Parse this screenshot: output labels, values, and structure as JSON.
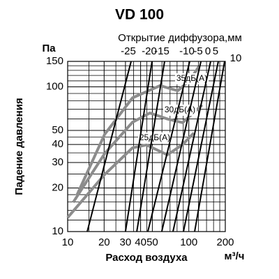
{
  "chart_data": {
    "type": "line",
    "title": "VD 100",
    "subtitle": "Открытие диффузора,мм",
    "x_label": "Расход воздуха",
    "x_unit": "м³/ч",
    "y_label": "Падение давления",
    "y_unit": "Па",
    "x_scale": "log",
    "y_scale": "log",
    "xlim": [
      10,
      200
    ],
    "ylim": [
      10,
      150
    ],
    "xticks": [
      10,
      20,
      30,
      40,
      50,
      100,
      200
    ],
    "yticks": [
      10,
      20,
      30,
      40,
      50,
      100,
      150
    ],
    "x_grid": [
      15,
      25,
      35,
      45,
      60,
      70,
      80,
      90,
      120,
      140,
      160,
      180
    ],
    "y_grid": [
      12,
      14,
      16,
      18,
      25,
      35,
      45,
      60,
      70,
      80,
      90,
      110,
      120,
      130,
      140
    ],
    "series": [
      {
        "name": "-25",
        "color": "#000000",
        "x": [
          14.5,
          33.4
        ],
        "values": [
          10,
          150
        ]
      },
      {
        "name": "-20",
        "color": "#000000",
        "x": [
          30.0,
          49.7
        ],
        "values": [
          10,
          150
        ]
      },
      {
        "name": "-15",
        "color": "#000000",
        "x": [
          37.2,
          63.1
        ],
        "values": [
          10,
          150
        ]
      },
      {
        "name": "-10",
        "color": "#000000",
        "x": [
          45.9,
          101.7
        ],
        "values": [
          10,
          150
        ]
      },
      {
        "name": "-5",
        "color": "#000000",
        "x": [
          59.8,
          125.9
        ],
        "values": [
          10,
          150
        ]
      },
      {
        "name": "0",
        "color": "#000000",
        "x": [
          74.0,
          151.4
        ],
        "values": [
          10,
          150
        ]
      },
      {
        "name": "5",
        "color": "#000000",
        "x": [
          90.3,
          175.1
        ],
        "values": [
          10,
          150
        ]
      },
      {
        "name": "10",
        "color": "#000000",
        "x": [
          111.7,
          197.4
        ],
        "values": [
          10,
          150
        ]
      }
    ],
    "noise_curves": [
      {
        "name": "35дБ(А)",
        "color": "#8c8c8c",
        "x": [
          11.9,
          20.2,
          34.3,
          58,
          81,
          101.7,
          121
        ],
        "values": [
          17.8,
          47,
          84,
          102,
          94,
          111,
          138
        ]
      },
      {
        "name": "30дБ(А)",
        "color": "#8c8c8c",
        "x": [
          11.1,
          20.2,
          34.3,
          47.7,
          66.6,
          89,
          128.8
        ],
        "values": [
          15.9,
          34.6,
          57,
          66,
          60,
          56.6,
          75
        ]
      },
      {
        "name": "25дБ(А)",
        "color": "#8c8c8c",
        "x": [
          10,
          20.2,
          34.3,
          44.7,
          66.6,
          89,
          110
        ],
        "values": [
          12.5,
          24.8,
          37.9,
          39.7,
          33.9,
          40,
          48
        ]
      }
    ]
  }
}
